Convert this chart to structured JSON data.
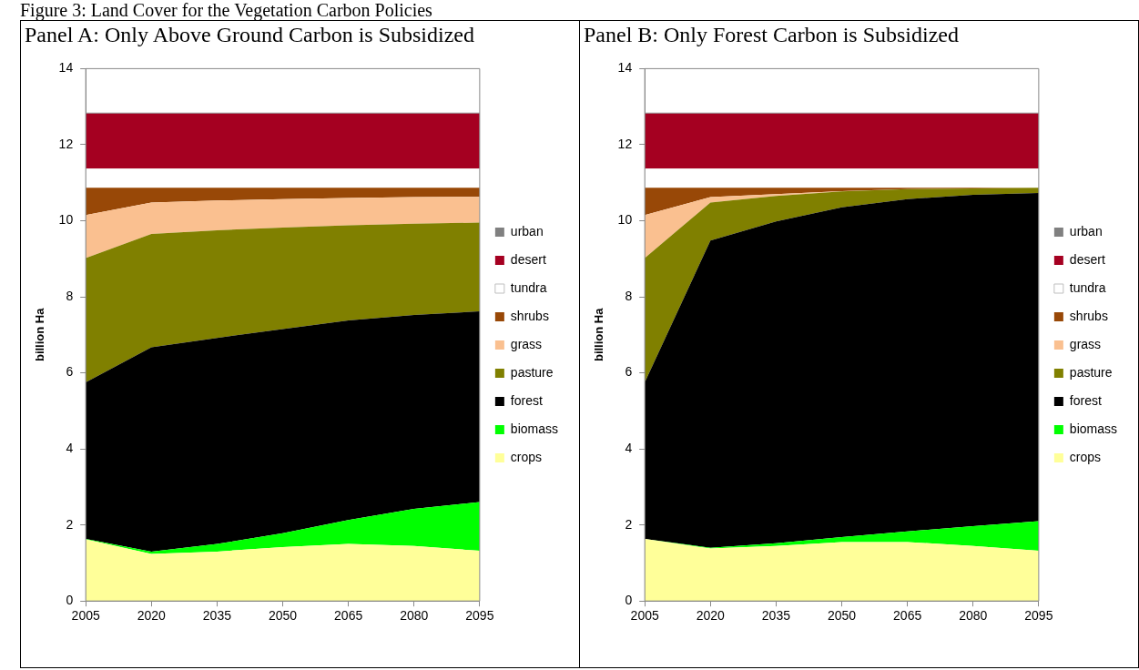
{
  "chart_data": [
    {
      "type": "area",
      "title": "Panel A: Only Above Ground Carbon is Subsidized",
      "ylabel": "billion Ha",
      "stacked": true,
      "legend": "right",
      "grid": false,
      "annotations": [
        "Figure 3: Land Cover for the Vegetation Carbon Policies"
      ],
      "categories": [
        "2005",
        "2020",
        "2035",
        "2050",
        "2065",
        "2080",
        "2095"
      ],
      "ylim": [
        0,
        14
      ],
      "yticks": [
        0,
        2,
        4,
        6,
        8,
        10,
        12,
        14
      ],
      "series": [
        {
          "name": "crops",
          "color": "#ffff99",
          "values": [
            1.62,
            1.24,
            1.3,
            1.42,
            1.5,
            1.45,
            1.32
          ]
        },
        {
          "name": "biomass",
          "color": "#00ff00",
          "values": [
            0.01,
            0.06,
            0.2,
            0.36,
            0.63,
            0.97,
            1.28
          ]
        },
        {
          "name": "forest",
          "color": "#000000",
          "values": [
            4.12,
            5.37,
            5.42,
            5.37,
            5.25,
            5.1,
            5.02
          ]
        },
        {
          "name": "pasture",
          "color": "#808000",
          "values": [
            3.27,
            2.98,
            2.83,
            2.67,
            2.5,
            2.4,
            2.33
          ]
        },
        {
          "name": "grass",
          "color": "#fac090",
          "values": [
            1.13,
            0.83,
            0.78,
            0.75,
            0.72,
            0.7,
            0.68
          ]
        },
        {
          "name": "shrubs",
          "color": "#984807",
          "values": [
            0.72,
            0.39,
            0.34,
            0.3,
            0.27,
            0.25,
            0.24
          ]
        },
        {
          "name": "tundra",
          "color": "#ffffff",
          "values": [
            0.5,
            0.5,
            0.5,
            0.5,
            0.5,
            0.5,
            0.5
          ]
        },
        {
          "name": "desert",
          "color": "#a50021",
          "values": [
            1.45,
            1.45,
            1.45,
            1.45,
            1.45,
            1.45,
            1.45
          ]
        },
        {
          "name": "urban",
          "color": "#808080",
          "values": [
            0.02,
            0.02,
            0.02,
            0.02,
            0.02,
            0.02,
            0.02
          ]
        }
      ]
    },
    {
      "type": "area",
      "title": "Panel B: Only Forest Carbon is Subsidized",
      "ylabel": "billion Ha",
      "stacked": true,
      "legend": "right",
      "grid": false,
      "categories": [
        "2005",
        "2020",
        "2035",
        "2050",
        "2065",
        "2080",
        "2095"
      ],
      "ylim": [
        0,
        14
      ],
      "yticks": [
        0,
        2,
        4,
        6,
        8,
        10,
        12,
        14
      ],
      "series": [
        {
          "name": "crops",
          "color": "#ffff99",
          "values": [
            1.63,
            1.38,
            1.45,
            1.55,
            1.55,
            1.45,
            1.32
          ]
        },
        {
          "name": "biomass",
          "color": "#00ff00",
          "values": [
            0,
            0.02,
            0.07,
            0.13,
            0.28,
            0.52,
            0.78
          ]
        },
        {
          "name": "forest",
          "color": "#000000",
          "values": [
            4.12,
            8.08,
            8.46,
            8.67,
            8.74,
            8.71,
            8.63
          ]
        },
        {
          "name": "pasture",
          "color": "#808000",
          "values": [
            3.27,
            1.0,
            0.67,
            0.42,
            0.26,
            0.17,
            0.14
          ]
        },
        {
          "name": "grass",
          "color": "#fac090",
          "values": [
            1.13,
            0.14,
            0.05,
            0.01,
            0,
            0,
            0
          ]
        },
        {
          "name": "shrubs",
          "color": "#984807",
          "values": [
            0.72,
            0.25,
            0.17,
            0.09,
            0.04,
            0.02,
            0
          ]
        },
        {
          "name": "tundra",
          "color": "#ffffff",
          "values": [
            0.5,
            0.5,
            0.5,
            0.5,
            0.5,
            0.5,
            0.5
          ]
        },
        {
          "name": "desert",
          "color": "#a50021",
          "values": [
            1.45,
            1.45,
            1.45,
            1.45,
            1.45,
            1.45,
            1.45
          ]
        },
        {
          "name": "urban",
          "color": "#808080",
          "values": [
            0.02,
            0.02,
            0.02,
            0.02,
            0.02,
            0.02,
            0.02
          ]
        }
      ]
    }
  ]
}
